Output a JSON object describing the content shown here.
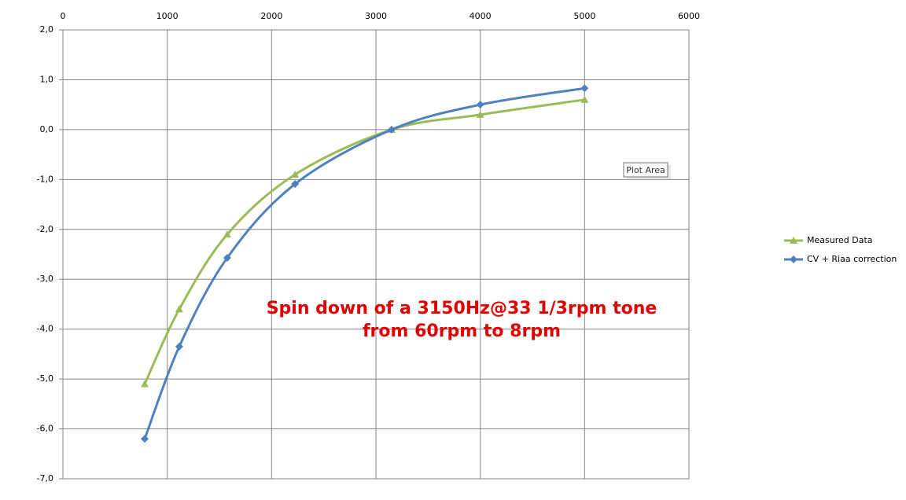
{
  "chart_data": {
    "type": "line",
    "annotation": [
      "Spin down of a 3150Hz@33 1/3rpm tone",
      "from 60rpm to 8rpm"
    ],
    "tooltip": "Plot Area",
    "xlim": [
      0,
      6000
    ],
    "xticks": [
      0,
      1000,
      2000,
      3000,
      4000,
      5000,
      6000
    ],
    "ylim": [
      -7,
      2
    ],
    "yticks": [
      {
        "value": 2,
        "label": "2,0"
      },
      {
        "value": 1,
        "label": "1,0"
      },
      {
        "value": 0,
        "label": "0,0"
      },
      {
        "value": -1,
        "label": "-1,0"
      },
      {
        "value": -2,
        "label": "-2,0"
      },
      {
        "value": -3,
        "label": "-3,0"
      },
      {
        "value": -4,
        "label": "-4,0"
      },
      {
        "value": -5,
        "label": "-5,0"
      },
      {
        "value": -6,
        "label": "-6,0"
      },
      {
        "value": -7,
        "label": "-7,0"
      }
    ],
    "grid": true,
    "legend": "right",
    "smooth": true,
    "series": [
      {
        "name": "Measured Data",
        "color": "#9bbb59",
        "marker": "triangle",
        "x": [
          784,
          1115,
          1575,
          2225,
          3150,
          4000,
          5000
        ],
        "values": [
          -5.1,
          -3.6,
          -2.1,
          -0.9,
          0,
          0.3,
          0.6
        ]
      },
      {
        "name": "CV + Riaa correction",
        "color": "#4f81bd",
        "marker": "diamond",
        "x": [
          784,
          1115,
          1575,
          2225,
          3150,
          4000,
          5000
        ],
        "values": [
          -6.2,
          -4.35,
          -2.57,
          -1.09,
          0,
          0.5,
          0.83
        ]
      }
    ]
  }
}
